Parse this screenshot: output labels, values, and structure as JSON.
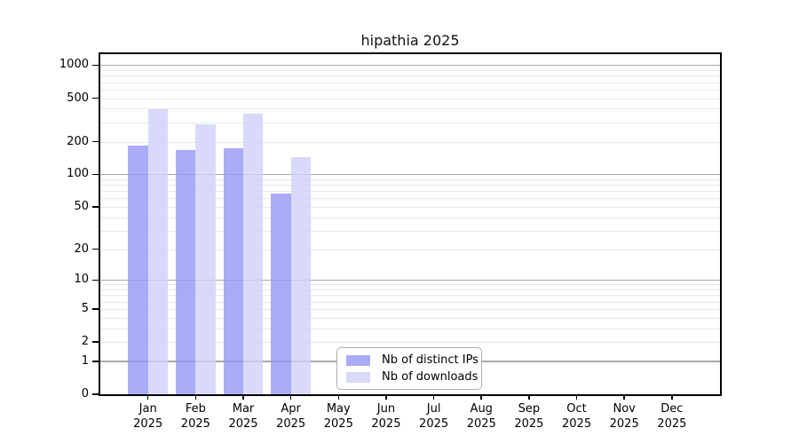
{
  "title": "hipathia 2025",
  "colors": {
    "ips_bar_fill": "rgba(150,150,244,0.8)",
    "downloads_bar_fill": "rgba(208,208,247,0.8)",
    "ips_swatch": "#aaaaf6",
    "downloads_swatch": "#d9d9f8",
    "grid_major": "#a9a9a9",
    "grid_minor": "#e9e9e9",
    "axis": "#000000"
  },
  "chart_data": {
    "type": "bar",
    "title": "hipathia 2025",
    "yscale": "log1p",
    "grid": true,
    "legend_position": "inside-bottom-center",
    "ylim": [
      0,
      1259
    ],
    "y_ticks": [
      1000,
      500,
      200,
      100,
      50,
      20,
      10,
      5,
      2,
      1,
      0
    ],
    "categories": [
      "Jan",
      "Feb",
      "Mar",
      "Apr",
      "May",
      "Jun",
      "Jul",
      "Aug",
      "Sep",
      "Oct",
      "Nov",
      "Dec"
    ],
    "year": "2025",
    "series": [
      {
        "name": "Nb of distinct IPs",
        "values": [
          184,
          166,
          174,
          66,
          null,
          null,
          null,
          null,
          null,
          null,
          null,
          null
        ]
      },
      {
        "name": "Nb of downloads",
        "values": [
          395,
          287,
          358,
          145,
          null,
          null,
          null,
          null,
          null,
          null,
          null,
          null
        ]
      }
    ]
  }
}
